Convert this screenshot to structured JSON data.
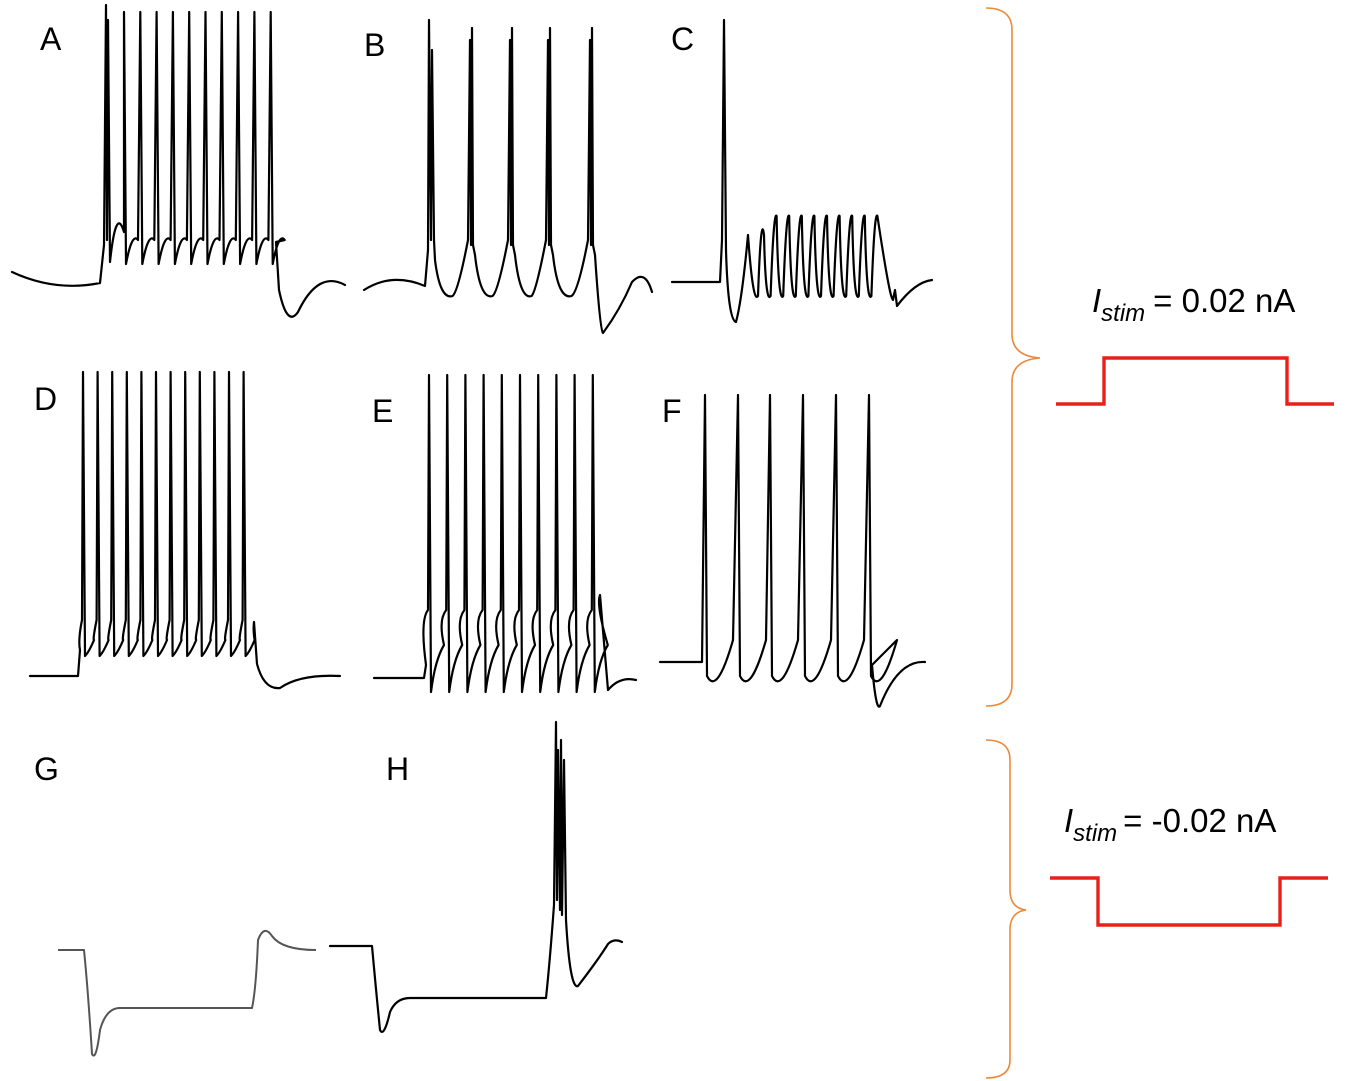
{
  "panels": {
    "A": {
      "label": "A"
    },
    "B": {
      "label": "B"
    },
    "C": {
      "label": "C"
    },
    "D": {
      "label": "D"
    },
    "E": {
      "label": "E"
    },
    "F": {
      "label": "F"
    },
    "G": {
      "label": "G"
    },
    "H": {
      "label": "H"
    }
  },
  "stimulus": {
    "positive": {
      "symbol": "I",
      "subscript": "stim",
      "text": "= 0.02 nA"
    },
    "negative": {
      "symbol": "I",
      "subscript": "stim",
      "text": "= -0.02 nA"
    }
  },
  "colors": {
    "trace": "#000000",
    "stimulus": "#e8201a",
    "bracket": "#ec8a3c"
  }
}
